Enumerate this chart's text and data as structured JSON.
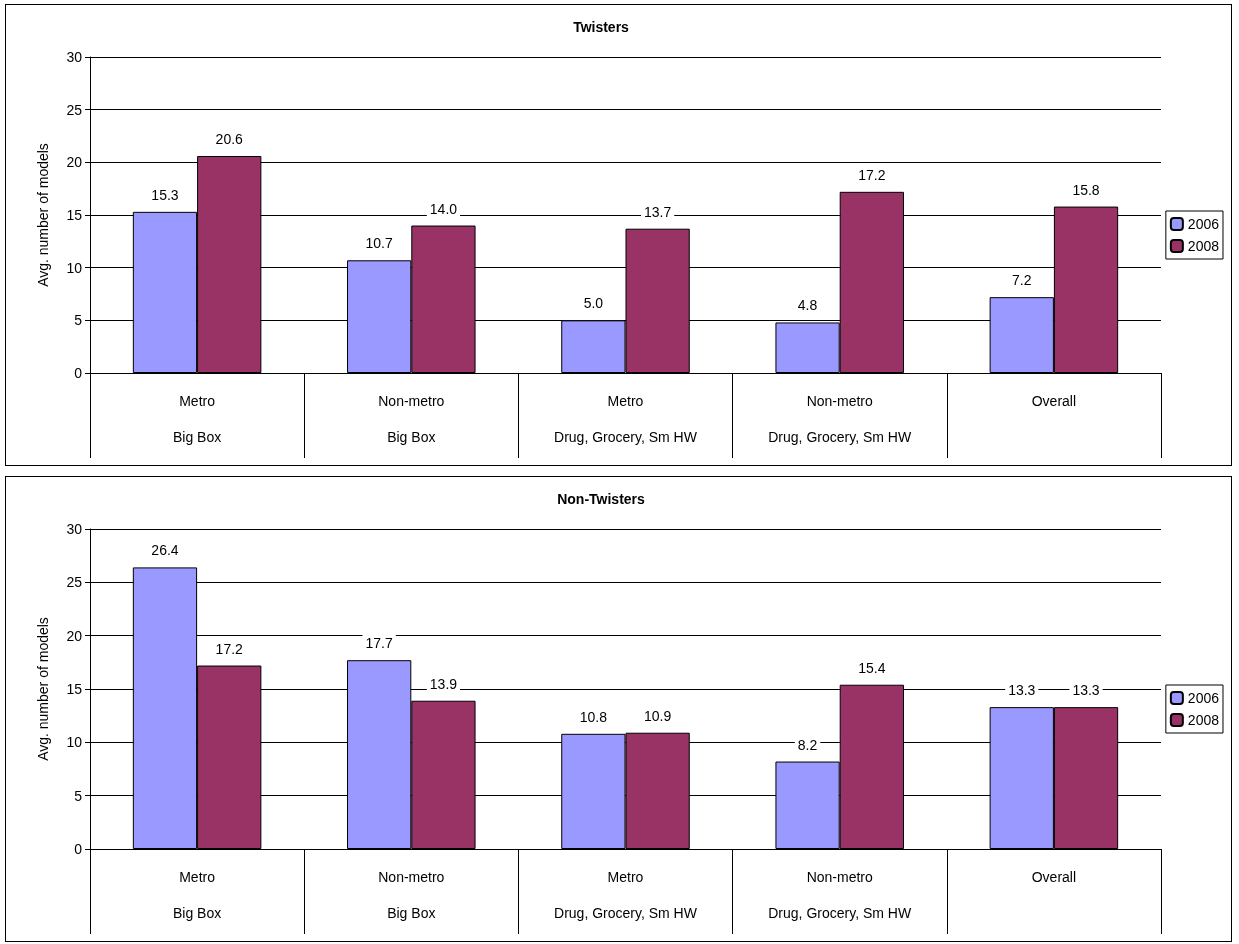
{
  "chart_data": [
    {
      "type": "bar",
      "title": "Twisters",
      "ylabel": "Avg. number of models",
      "categories": [
        "Metro\nBig Box",
        "Non-metro\nBig Box",
        "Metro\nDrug, Grocery, Sm HW",
        "Non-metro\nDrug, Grocery, Sm HW",
        "Overall"
      ],
      "series": [
        {
          "name": "2006",
          "color": "#9999ff",
          "values": [
            15.3,
            10.7,
            5.0,
            4.8,
            7.2
          ],
          "value_labels": [
            "15.3",
            "10.7",
            "5.0",
            "4.8",
            "7.2"
          ]
        },
        {
          "name": "2008",
          "color": "#993366",
          "values": [
            20.6,
            14.0,
            13.7,
            17.2,
            15.8
          ],
          "value_labels": [
            "20.6",
            "14.0",
            "13.7",
            "17.2",
            "15.8"
          ]
        }
      ],
      "ylim": [
        0,
        30
      ],
      "yticks": [
        0,
        5,
        10,
        15,
        20,
        25,
        30
      ],
      "grid": "y",
      "legend": "right"
    },
    {
      "type": "bar",
      "title": "Non-Twisters",
      "ylabel": "Avg. number of models",
      "categories": [
        "Metro\nBig Box",
        "Non-metro\nBig Box",
        "Metro\nDrug, Grocery, Sm HW",
        "Non-metro\nDrug, Grocery, Sm HW",
        "Overall"
      ],
      "series": [
        {
          "name": "2006",
          "color": "#9999ff",
          "values": [
            26.4,
            17.7,
            10.8,
            8.2,
            13.3
          ],
          "value_labels": [
            "26.4",
            "17.7",
            "10.8",
            "8.2",
            "13.3"
          ]
        },
        {
          "name": "2008",
          "color": "#993366",
          "values": [
            17.2,
            13.9,
            10.9,
            15.4,
            13.3
          ],
          "value_labels": [
            "17.2",
            "13.9",
            "10.9",
            "15.4",
            "13.3"
          ]
        }
      ],
      "ylim": [
        0,
        30
      ],
      "yticks": [
        0,
        5,
        10,
        15,
        20,
        25,
        30
      ],
      "grid": "y",
      "legend": "right"
    }
  ]
}
